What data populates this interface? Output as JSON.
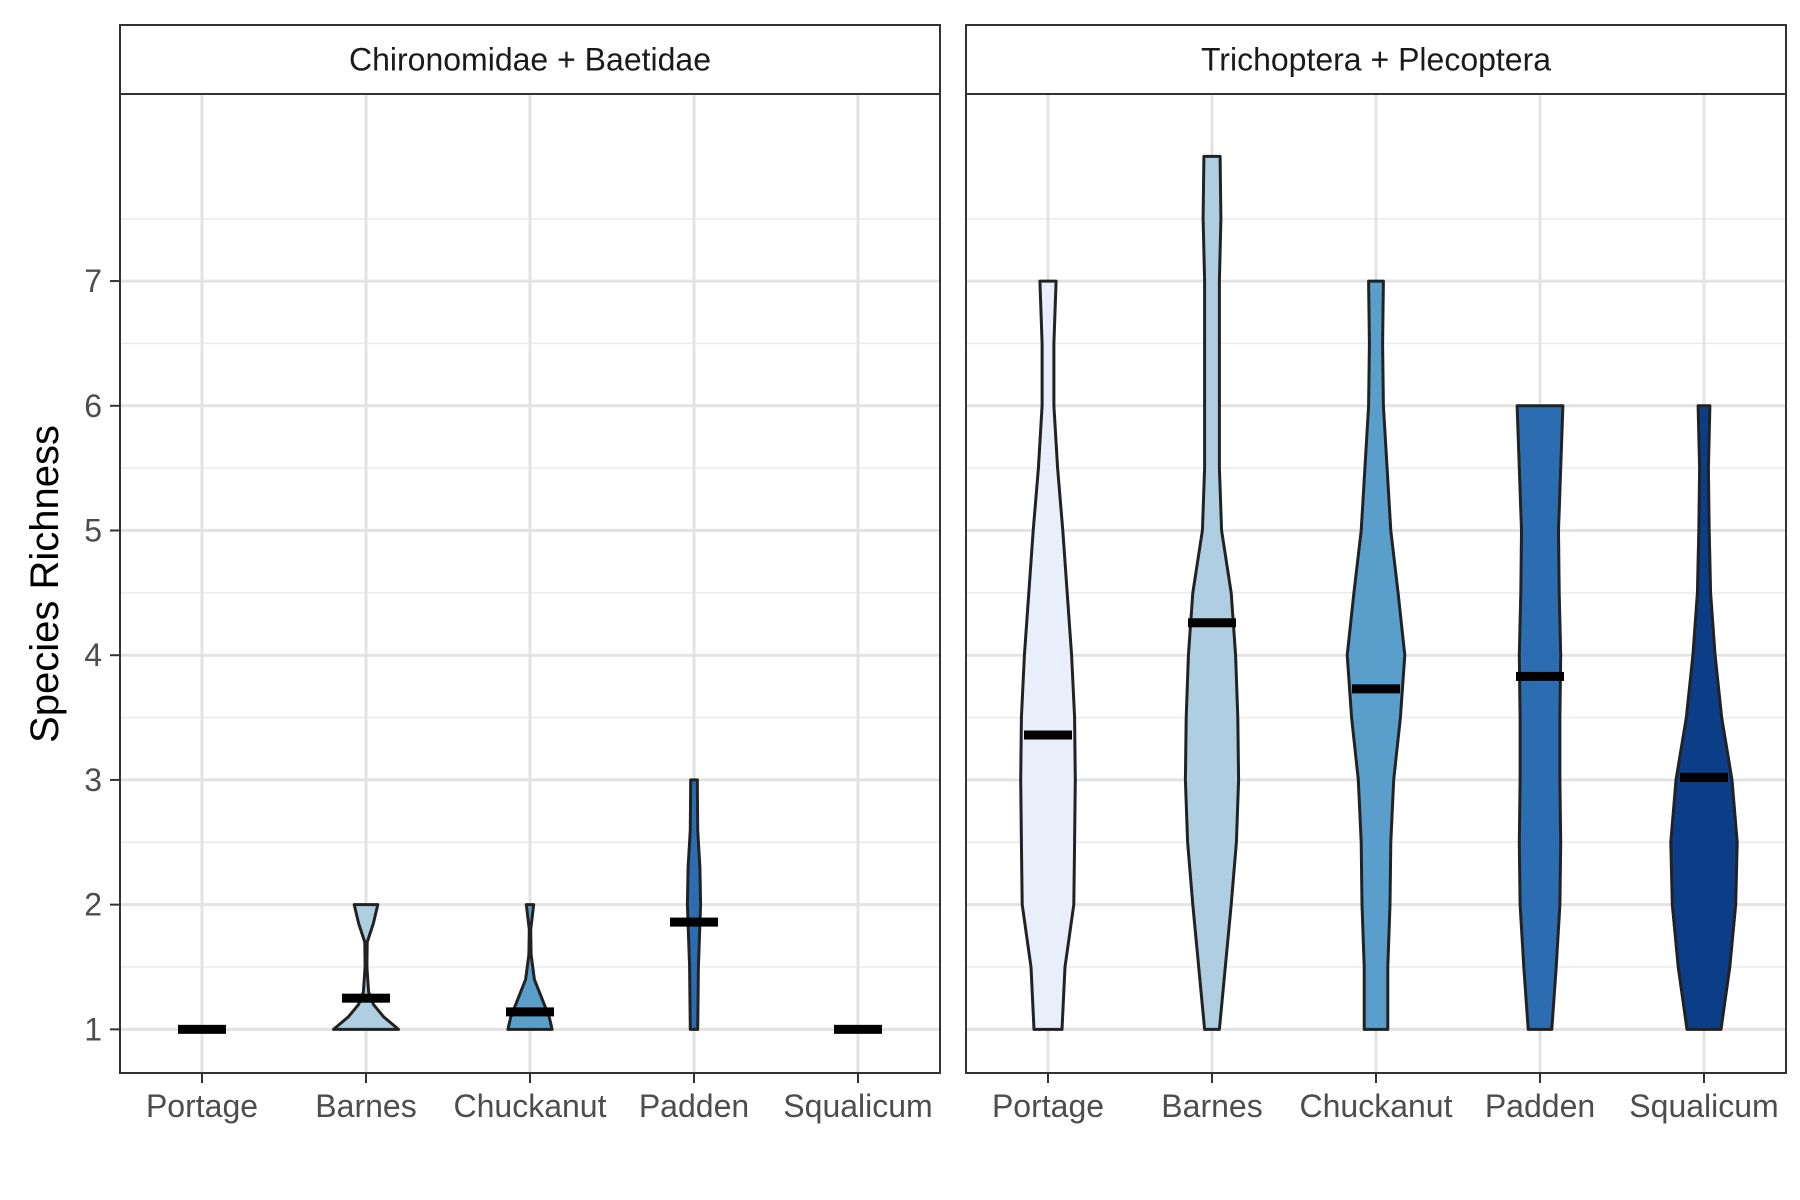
{
  "chart_data": {
    "type": "violin",
    "ylabel": "Species Richness",
    "xlabel": "",
    "ylim": [
      0.65,
      8.5
    ],
    "yticks": [
      1,
      2,
      3,
      4,
      5,
      6,
      7
    ],
    "grid": true,
    "legend": "none",
    "categories": [
      "Portage",
      "Barnes",
      "Chuckanut",
      "Padden",
      "Squalicum"
    ],
    "colors": {
      "Portage": "#e8eefa",
      "Barnes": "#b0cee2",
      "Chuckanut": "#5a9ecb",
      "Padden": "#2c6db1",
      "Squalicum": "#0c3d87"
    },
    "outline_color": "#222222",
    "mean_marker_color": "#000000",
    "panels": [
      {
        "title": "Chironomidae + Baetidae",
        "violins": [
          {
            "category": "Portage",
            "mean": 1.0,
            "ymin": 1,
            "ymax": 1,
            "profile": [
              [
                1,
                0
              ]
            ]
          },
          {
            "category": "Barnes",
            "mean": 1.25,
            "ymin": 1,
            "ymax": 2,
            "profile": [
              [
                1,
                0.44
              ],
              [
                1.1,
                0.24
              ],
              [
                1.2,
                0.1
              ],
              [
                1.3,
                0.035
              ],
              [
                1.5,
                0.012
              ],
              [
                1.7,
                0.016
              ],
              [
                1.85,
                0.1
              ],
              [
                2,
                0.16
              ]
            ]
          },
          {
            "category": "Chuckanut",
            "mean": 1.14,
            "ymin": 1,
            "ymax": 2,
            "profile": [
              [
                1,
                0.3
              ],
              [
                1.1,
                0.26
              ],
              [
                1.25,
                0.16
              ],
              [
                1.4,
                0.06
              ],
              [
                1.6,
                0.015
              ],
              [
                1.8,
                0.01
              ],
              [
                2,
                0.05
              ]
            ]
          },
          {
            "category": "Padden",
            "mean": 1.86,
            "ymin": 1,
            "ymax": 3,
            "profile": [
              [
                1,
                0.05
              ],
              [
                1.5,
                0.06
              ],
              [
                2,
                0.09
              ],
              [
                2.3,
                0.08
              ],
              [
                2.6,
                0.05
              ],
              [
                3,
                0.045
              ]
            ]
          },
          {
            "category": "Squalicum",
            "mean": 1.0,
            "ymin": 1,
            "ymax": 1,
            "profile": [
              [
                1,
                0
              ]
            ]
          }
        ]
      },
      {
        "title": "Trichoptera + Plecoptera",
        "violins": [
          {
            "category": "Portage",
            "mean": 3.36,
            "ymin": 1,
            "ymax": 7,
            "profile": [
              [
                1,
                0.19
              ],
              [
                1.5,
                0.23
              ],
              [
                2,
                0.35
              ],
              [
                2.5,
                0.36
              ],
              [
                3,
                0.37
              ],
              [
                3.5,
                0.36
              ],
              [
                4,
                0.32
              ],
              [
                4.5,
                0.26
              ],
              [
                5,
                0.2
              ],
              [
                5.5,
                0.13
              ],
              [
                6,
                0.08
              ],
              [
                6.5,
                0.08
              ],
              [
                7,
                0.11
              ]
            ]
          },
          {
            "category": "Barnes",
            "mean": 4.26,
            "ymin": 1,
            "ymax": 8,
            "profile": [
              [
                1,
                0.1
              ],
              [
                1.5,
                0.18
              ],
              [
                2,
                0.26
              ],
              [
                2.5,
                0.33
              ],
              [
                3,
                0.36
              ],
              [
                3.5,
                0.35
              ],
              [
                4,
                0.32
              ],
              [
                4.5,
                0.26
              ],
              [
                5,
                0.13
              ],
              [
                5.5,
                0.1
              ],
              [
                6,
                0.1
              ],
              [
                7,
                0.1
              ],
              [
                7.5,
                0.12
              ],
              [
                8,
                0.11
              ]
            ]
          },
          {
            "category": "Chuckanut",
            "mean": 3.73,
            "ymin": 1,
            "ymax": 7,
            "profile": [
              [
                1,
                0.16
              ],
              [
                1.5,
                0.16
              ],
              [
                2,
                0.19
              ],
              [
                2.5,
                0.2
              ],
              [
                3,
                0.24
              ],
              [
                3.5,
                0.33
              ],
              [
                4,
                0.39
              ],
              [
                4.5,
                0.3
              ],
              [
                5,
                0.2
              ],
              [
                5.5,
                0.15
              ],
              [
                6,
                0.1
              ],
              [
                6.5,
                0.09
              ],
              [
                7,
                0.1
              ]
            ]
          },
          {
            "category": "Padden",
            "mean": 3.83,
            "ymin": 1,
            "ymax": 6,
            "profile": [
              [
                1,
                0.16
              ],
              [
                1.5,
                0.22
              ],
              [
                2,
                0.27
              ],
              [
                2.5,
                0.28
              ],
              [
                3,
                0.27
              ],
              [
                3.5,
                0.27
              ],
              [
                4,
                0.28
              ],
              [
                4.5,
                0.26
              ],
              [
                5,
                0.25
              ],
              [
                5.5,
                0.28
              ],
              [
                6,
                0.31
              ]
            ]
          },
          {
            "category": "Squalicum",
            "mean": 3.02,
            "ymin": 1,
            "ymax": 6,
            "profile": [
              [
                1,
                0.23
              ],
              [
                1.5,
                0.35
              ],
              [
                2,
                0.43
              ],
              [
                2.5,
                0.45
              ],
              [
                3,
                0.38
              ],
              [
                3.5,
                0.24
              ],
              [
                4,
                0.15
              ],
              [
                4.5,
                0.09
              ],
              [
                5,
                0.07
              ],
              [
                5.5,
                0.06
              ],
              [
                6,
                0.08
              ]
            ]
          }
        ]
      }
    ]
  }
}
